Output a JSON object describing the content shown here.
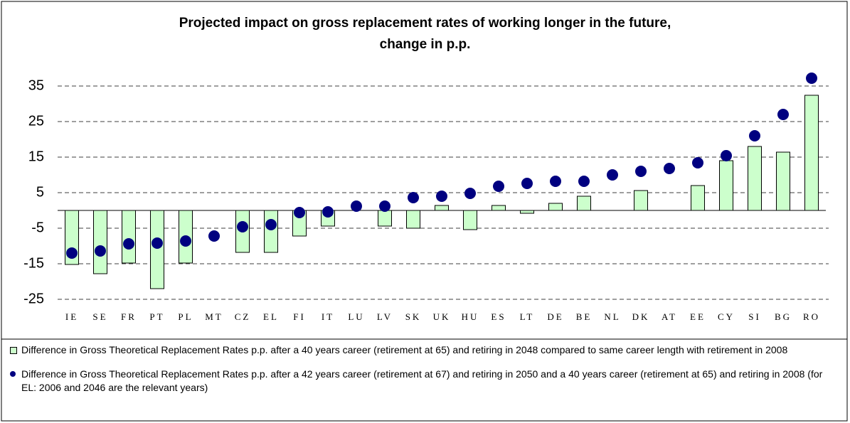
{
  "chart_data": {
    "type": "bar-dot",
    "title": "Projected impact on gross replacement rates of working longer in the future,\nchange in p.p.",
    "categories": [
      "IE",
      "SE",
      "FR",
      "PT",
      "PL",
      "MT",
      "CZ",
      "EL",
      "FI",
      "IT",
      "LU",
      "LV",
      "SK",
      "UK",
      "HU",
      "ES",
      "LT",
      "DE",
      "BE",
      "NL",
      "DK",
      "AT",
      "EE",
      "CY",
      "SI",
      "BG",
      "RO"
    ],
    "series": [
      {
        "name": "Difference in Gross Theoretical Replacement Rates p.p. after a 40 years career (retirement at 65) and retiring in 2048 compared to same career length with retirement in 2008",
        "kind": "bar",
        "color": "#ccffcc",
        "values": [
          -15.2,
          -17.8,
          -14.8,
          -22,
          -14.8,
          0,
          -11.8,
          -11.8,
          -7.2,
          -4.4,
          0,
          -4.4,
          -5,
          1.4,
          -5.4,
          1.4,
          -0.8,
          2,
          4,
          0,
          5.6,
          0,
          7,
          14,
          18,
          16.4,
          32.4
        ]
      },
      {
        "name": "Difference in Gross Theoretical Replacement Rates p.p. after a 42 years career (retirement at 67) and retiring in 2050 and a 40 years career (retirement at 65) and retiring in 2008 (for EL: 2006 and 2046 are the relevant years)",
        "kind": "dot",
        "color": "#000080",
        "values": [
          -12,
          -11.4,
          -9.4,
          -9.2,
          -8.6,
          -7.2,
          -4.6,
          -4,
          -0.6,
          -0.4,
          1.2,
          1.2,
          3.6,
          4,
          4.8,
          6.8,
          7.6,
          8.2,
          8.2,
          10,
          11,
          11.8,
          13.4,
          15.4,
          21,
          27,
          37.2
        ]
      }
    ],
    "ylim": [
      -25,
      40
    ],
    "yticks": [
      35,
      25,
      15,
      5,
      -5,
      -15,
      -25
    ],
    "grid": true
  }
}
